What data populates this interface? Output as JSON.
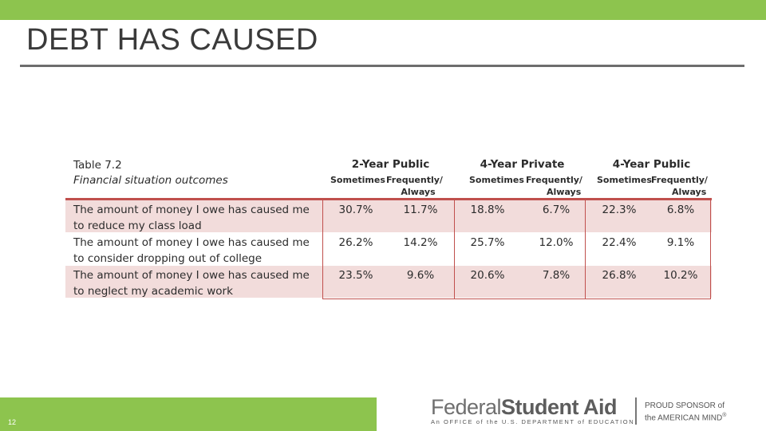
{
  "slide": {
    "title": "DEBT HAS CAUSED",
    "page_number": "12"
  },
  "table": {
    "number": "Table 7.2",
    "caption": "Financial situation outcomes",
    "groups": [
      "2-Year Public",
      "4-Year Private",
      "4-Year Public"
    ],
    "subheaders": {
      "sometimes": "Sometimes",
      "frequently_line1": "Frequently/",
      "frequently_line2": "Always"
    },
    "rows": [
      {
        "label_line1": "The amount of money I owe has caused me",
        "label_line2": "to reduce my class load",
        "values": [
          "30.7%",
          "11.7%",
          "18.8%",
          "6.7%",
          "22.3%",
          "6.8%"
        ]
      },
      {
        "label_line1": "The amount of money I owe has caused me",
        "label_line2": "to consider dropping out of college",
        "values": [
          "26.2%",
          "14.2%",
          "25.7%",
          "12.0%",
          "22.4%",
          "9.1%"
        ]
      },
      {
        "label_line1": "The amount of money I owe has caused me",
        "label_line2": "to neglect my academic work",
        "values": [
          "23.5%",
          "9.6%",
          "20.6%",
          "7.8%",
          "26.8%",
          "10.2%"
        ]
      }
    ]
  },
  "logo": {
    "federal": "Federal",
    "student_aid": "Student Aid",
    "subline": "An OFFICE of the U.S. DEPARTMENT of EDUCATION",
    "sponsor_line1": "PROUD SPONSOR of",
    "sponsor_line2": "the AMERICAN MIND",
    "registered": "®"
  },
  "colors": {
    "accent_green": "#8dc44e",
    "table_rule_red": "#c0504d",
    "row_shade_pink": "#f2dcdb"
  }
}
